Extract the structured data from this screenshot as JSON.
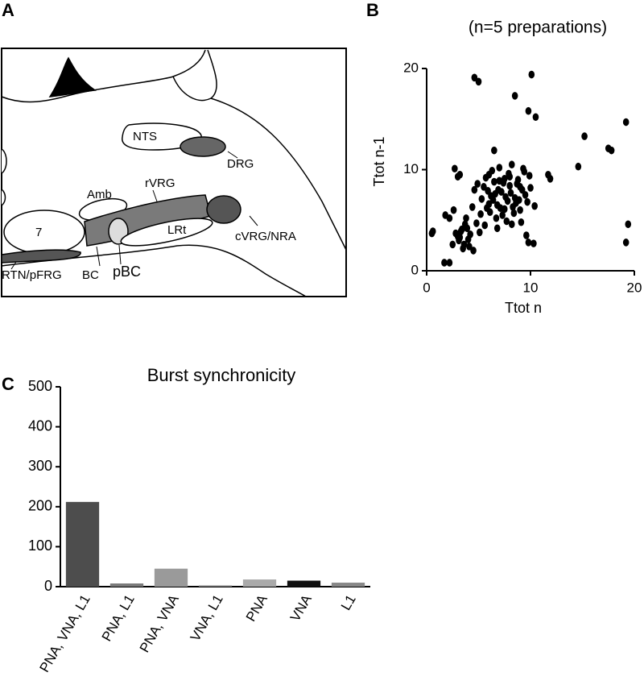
{
  "panel_labels": [
    "A",
    "B",
    "C"
  ],
  "diagram": {
    "labels": [
      "NTS",
      "DRG",
      "Amb",
      "rVRG",
      "7",
      "LRt",
      "cVRG/NRA",
      "RTN/pFRG",
      "BC",
      "pBC"
    ]
  },
  "chart_data": [
    {
      "type": "scatter",
      "title": "(n=5 preparations)",
      "x_label": "Ttot n",
      "y_label": "Ttot n-1",
      "color": "#000000",
      "xlim": [
        0,
        20
      ],
      "ylim": [
        0,
        20
      ],
      "xticks": [
        0,
        10,
        20
      ],
      "yticks": [
        0,
        10,
        20
      ],
      "x": [
        4.6,
        5.0,
        10.1,
        8.5,
        9.8,
        10.5,
        15.2,
        14.6,
        17.5,
        17.8,
        19.2,
        19.4,
        19.2,
        6.5,
        0.5,
        0.6,
        1.7,
        2.2,
        1.8,
        2.2,
        3.0,
        3.2,
        11.7,
        11.9,
        10.3,
        9.8,
        2.5,
        3.0,
        3.3,
        3.6,
        3.9,
        4.2,
        3.5,
        3.1,
        2.8,
        4.0,
        3.7,
        3.4,
        4.4,
        4.8,
        2.6,
        3.8,
        4.1,
        3.2,
        5.2,
        4.5,
        5.5,
        5.8,
        6.0,
        6.2,
        6.5,
        6.8,
        7.0,
        7.2,
        7.5,
        7.8,
        8.0,
        8.2,
        8.5,
        8.8,
        9.0,
        9.2,
        9.5,
        5.6,
        6.1,
        6.4,
        6.9,
        7.3,
        7.6,
        7.9,
        8.3,
        8.7,
        9.1,
        9.4,
        9.7,
        10.0,
        5.9,
        6.3,
        6.7,
        7.1,
        7.4,
        7.7,
        8.1,
        8.4,
        8.9,
        9.3,
        6.0,
        6.6,
        7.0,
        7.5,
        8.0,
        8.6,
        9.0,
        9.6,
        5.3,
        4.9,
        5.7,
        6.8,
        8.2,
        9.9,
        10.4,
        2.7,
        4.6,
        5.1
      ],
      "y": [
        19.1,
        18.7,
        19.4,
        17.3,
        15.8,
        15.2,
        13.3,
        10.3,
        12.1,
        11.9,
        14.7,
        4.6,
        2.8,
        11.9,
        3.7,
        3.9,
        0.8,
        0.8,
        5.5,
        5.2,
        9.3,
        9.5,
        9.5,
        9.1,
        2.7,
        2.8,
        2.6,
        3.4,
        3.9,
        2.6,
        4.2,
        3.6,
        2.2,
        3.0,
        3.7,
        3.1,
        4.6,
        4.1,
        6.3,
        4.7,
        6.0,
        5.2,
        2.4,
        3.3,
        5.6,
        2.0,
        8.3,
        6.2,
        9.5,
        7.4,
        8.8,
        6.5,
        10.2,
        7.8,
        9.1,
        6.9,
        8.4,
        10.5,
        7.2,
        9.0,
        6.0,
        8.0,
        7.5,
        4.5,
        5.8,
        7.0,
        8.0,
        5.5,
        7.3,
        9.6,
        6.3,
        8.6,
        4.8,
        9.8,
        6.8,
        8.2,
        7.9,
        9.9,
        5.2,
        6.2,
        8.7,
        4.9,
        7.7,
        5.7,
        7.0,
        10.1,
        6.6,
        7.6,
        8.9,
        6.1,
        9.3,
        6.7,
        8.3,
        3.5,
        7.1,
        8.6,
        9.2,
        4.2,
        4.6,
        9.4,
        6.4,
        10.1,
        8.0,
        3.8
      ]
    },
    {
      "type": "bar",
      "title": "Burst synchronicity",
      "categories": [
        "PNA, VNA, L1",
        "PNA, L1",
        "PNA, VNA",
        "VNA, L1",
        "PNA",
        "VNA",
        "L1"
      ],
      "values": [
        212,
        8,
        45,
        3,
        18,
        15,
        10
      ],
      "colors": [
        "#4d4d4d",
        "#7a7a7a",
        "#9a9a9a",
        "#7f7f7f",
        "#aaaaaa",
        "#111111",
        "#888888"
      ],
      "ylim": [
        0,
        500
      ],
      "yticks": [
        0,
        100,
        200,
        300,
        400,
        500
      ]
    }
  ]
}
